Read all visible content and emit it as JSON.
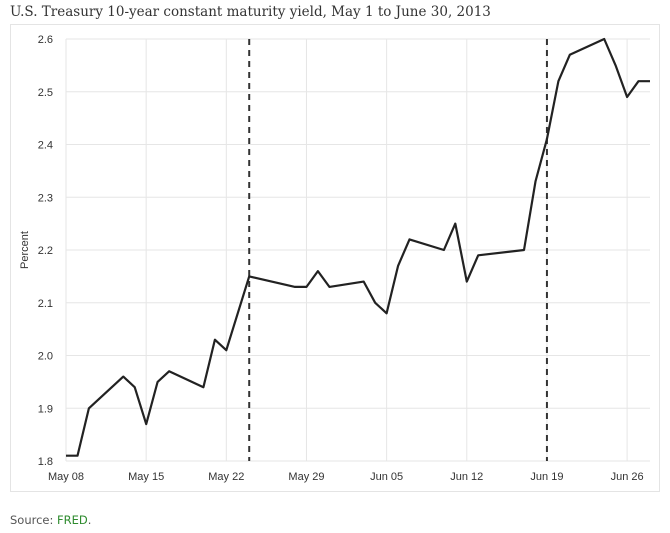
{
  "title": "U.S. Treasury 10-year constant maturity yield, May 1 to June 30, 2013",
  "source": {
    "prefix": "Source: ",
    "link": "FRED",
    "suffix": "."
  },
  "chart_data": {
    "type": "line",
    "ylabel": "Percent",
    "ylim": [
      1.8,
      2.6
    ],
    "yticks": [
      1.8,
      1.9,
      2.0,
      2.1,
      2.2,
      2.3,
      2.4,
      2.5,
      2.6
    ],
    "xlim": [
      "2013-05-08",
      "2013-06-28"
    ],
    "xticks": [
      {
        "date": "2013-05-08",
        "label": "May 08"
      },
      {
        "date": "2013-05-15",
        "label": "May 15"
      },
      {
        "date": "2013-05-22",
        "label": "May 22"
      },
      {
        "date": "2013-05-29",
        "label": "May 29"
      },
      {
        "date": "2013-06-05",
        "label": "Jun 05"
      },
      {
        "date": "2013-06-12",
        "label": "Jun 12"
      },
      {
        "date": "2013-06-19",
        "label": "Jun 19"
      },
      {
        "date": "2013-06-26",
        "label": "Jun 26"
      }
    ],
    "grid": true,
    "line_color": "#222222",
    "vlines": [
      "2013-05-24",
      "2013-06-19"
    ],
    "series": [
      {
        "x": [
          "2013-05-08",
          "2013-05-09",
          "2013-05-10",
          "2013-05-11",
          "2013-05-13",
          "2013-05-14",
          "2013-05-15",
          "2013-05-16",
          "2013-05-17",
          "2013-05-20",
          "2013-05-21",
          "2013-05-22",
          "2013-05-24",
          "2013-05-28",
          "2013-05-29",
          "2013-05-30",
          "2013-05-31",
          "2013-06-03",
          "2013-06-04",
          "2013-06-05",
          "2013-06-06",
          "2013-06-07",
          "2013-06-10",
          "2013-06-11",
          "2013-06-12",
          "2013-06-13",
          "2013-06-17",
          "2013-06-18",
          "2013-06-19",
          "2013-06-20",
          "2013-06-21",
          "2013-06-24",
          "2013-06-25",
          "2013-06-26",
          "2013-06-27",
          "2013-06-28"
        ],
        "values": [
          1.81,
          1.81,
          1.9,
          1.92,
          1.96,
          1.94,
          1.87,
          1.95,
          1.97,
          1.94,
          2.03,
          2.01,
          2.15,
          2.13,
          2.13,
          2.16,
          2.13,
          2.14,
          2.1,
          2.08,
          2.17,
          2.22,
          2.2,
          2.25,
          2.14,
          2.19,
          2.2,
          2.33,
          2.41,
          2.52,
          2.57,
          2.6,
          2.55,
          2.49,
          2.52,
          2.52
        ]
      }
    ]
  }
}
